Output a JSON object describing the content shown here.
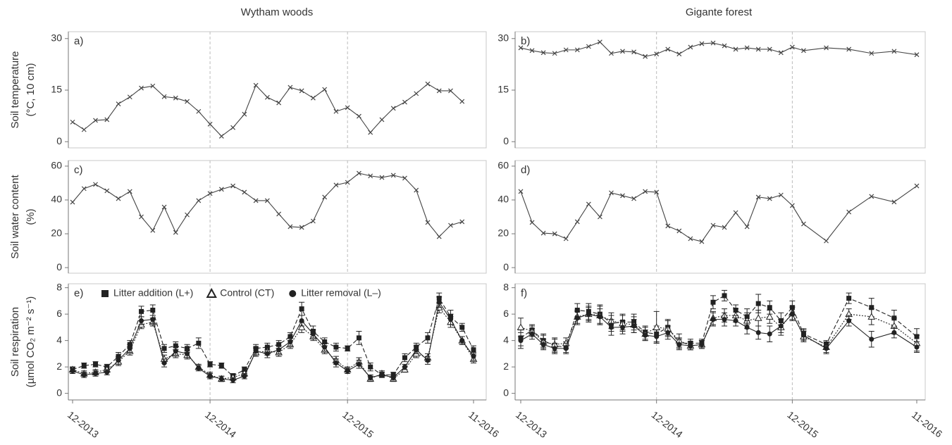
{
  "chart_data": [
    {
      "type": "line",
      "title": "Wytham woods",
      "label": "a)",
      "ylabel": [
        "Soil temperature",
        "(°C, 10 cm)"
      ],
      "xlim": [
        "2013-12",
        "2016-11"
      ],
      "ylim": [
        -1.8,
        32
      ],
      "yticks": [
        0,
        15,
        30
      ],
      "vlines": [
        "2014-12",
        "2015-12"
      ],
      "x": [
        "2013-12",
        "2014-01",
        "2014-02",
        "2014-03",
        "2014-04",
        "2014-05",
        "2014-06",
        "2014-07",
        "2014-08",
        "2014-09",
        "2014-10",
        "2014-11",
        "2014-12",
        "2015-01",
        "2015-02",
        "2015-03",
        "2015-04",
        "2015-05",
        "2015-06",
        "2015-07",
        "2015-08",
        "2015-09",
        "2015-10",
        "2015-11",
        "2015-12",
        "2016-01",
        "2016-02",
        "2016-03",
        "2016-04",
        "2016-05",
        "2016-06",
        "2016-07",
        "2016-08",
        "2016-09",
        "2016-10"
      ],
      "series": [
        {
          "color": "#444",
          "marker": "x",
          "dash": "solid",
          "values": [
            5.7,
            3.5,
            6.2,
            6.4,
            11,
            13,
            15.6,
            16.2,
            13.1,
            12.7,
            11.7,
            8.8,
            5.1,
            1.6,
            4.1,
            8,
            16.4,
            12.9,
            11.3,
            15.8,
            14.8,
            12.7,
            15.2,
            8.8,
            9.9,
            7.4,
            2.7,
            6.4,
            9.7,
            11.5,
            14,
            16.8,
            14.8,
            14.8,
            11.7
          ]
        }
      ]
    },
    {
      "type": "line",
      "title": "Gigante forest",
      "label": "b)",
      "xlim": [
        "2013-12",
        "2016-11"
      ],
      "ylim": [
        -1.8,
        32
      ],
      "yticks": [
        0,
        15,
        30
      ],
      "vlines": [
        "2014-12",
        "2015-12"
      ],
      "x": [
        "2013-12",
        "2014-01",
        "2014-02",
        "2014-03",
        "2014-04",
        "2014-05",
        "2014-06",
        "2014-07",
        "2014-08",
        "2014-09",
        "2014-10",
        "2014-11",
        "2014-12",
        "2015-01",
        "2015-02",
        "2015-03",
        "2015-04",
        "2015-05",
        "2015-06",
        "2015-07",
        "2015-08",
        "2015-09",
        "2015-10",
        "2015-11",
        "2015-12",
        "2016-01",
        "2016-03",
        "2016-05",
        "2016-07",
        "2016-09",
        "2016-11"
      ],
      "series": [
        {
          "color": "#444",
          "marker": "x",
          "dash": "solid",
          "values": [
            27.3,
            26.5,
            25.9,
            25.7,
            26.7,
            26.7,
            27.7,
            29,
            25.7,
            26.3,
            26.1,
            24.8,
            25.5,
            26.9,
            25.5,
            27.5,
            28.5,
            28.7,
            27.9,
            26.9,
            27.3,
            26.9,
            26.9,
            25.9,
            27.5,
            26.5,
            27.3,
            26.9,
            25.7,
            26.3,
            25.3
          ]
        }
      ]
    },
    {
      "type": "line",
      "label": "c)",
      "ylabel": [
        "Soil water content",
        "(%)"
      ],
      "xlim": [
        "2013-12",
        "2016-11"
      ],
      "ylim": [
        -3.3,
        63.3
      ],
      "yticks": [
        0,
        20,
        40,
        60
      ],
      "vlines": [
        "2014-12",
        "2015-12"
      ],
      "x": [
        "2013-12",
        "2014-01",
        "2014-02",
        "2014-03",
        "2014-04",
        "2014-05",
        "2014-06",
        "2014-07",
        "2014-08",
        "2014-09",
        "2014-10",
        "2014-11",
        "2014-12",
        "2015-01",
        "2015-02",
        "2015-03",
        "2015-04",
        "2015-05",
        "2015-06",
        "2015-07",
        "2015-08",
        "2015-09",
        "2015-10",
        "2015-11",
        "2015-12",
        "2016-01",
        "2016-02",
        "2016-03",
        "2016-04",
        "2016-05",
        "2016-06",
        "2016-07",
        "2016-08",
        "2016-09",
        "2016-10"
      ],
      "series": [
        {
          "color": "#444",
          "marker": "x",
          "dash": "solid",
          "values": [
            38.7,
            46.7,
            49.2,
            45.4,
            40.8,
            45,
            30,
            22,
            35.8,
            20.8,
            31.2,
            39.6,
            43.8,
            46.3,
            48.3,
            44.6,
            39.6,
            39.6,
            31.7,
            24.2,
            23.8,
            27.5,
            41.7,
            48.8,
            50.4,
            55.8,
            54.2,
            53.3,
            54.6,
            52.9,
            45.8,
            26.7,
            18.3,
            25,
            27.1
          ]
        }
      ]
    },
    {
      "type": "line",
      "label": "d)",
      "xlim": [
        "2013-12",
        "2016-11"
      ],
      "ylim": [
        -3.3,
        63.3
      ],
      "yticks": [
        0,
        20,
        40,
        60
      ],
      "vlines": [
        "2014-12",
        "2015-12"
      ],
      "x": [
        "2013-12",
        "2014-01",
        "2014-02",
        "2014-03",
        "2014-04",
        "2014-05",
        "2014-06",
        "2014-07",
        "2014-08",
        "2014-09",
        "2014-10",
        "2014-11",
        "2014-12",
        "2015-01",
        "2015-02",
        "2015-03",
        "2015-04",
        "2015-05",
        "2015-06",
        "2015-07",
        "2015-08",
        "2015-09",
        "2015-10",
        "2015-11",
        "2015-12",
        "2016-01",
        "2016-03",
        "2016-05",
        "2016-07",
        "2016-09",
        "2016-11"
      ],
      "series": [
        {
          "color": "#444",
          "marker": "x",
          "dash": "solid",
          "values": [
            45,
            26.7,
            20.4,
            20,
            17.1,
            27.1,
            37.5,
            30,
            44.2,
            42.5,
            40.8,
            45,
            44.6,
            24.6,
            21.7,
            17.1,
            15.4,
            25,
            23.8,
            32.5,
            24.2,
            41.7,
            40.8,
            42.9,
            36.7,
            25.8,
            15.8,
            32.9,
            42.1,
            38.8,
            48.3
          ]
        }
      ]
    },
    {
      "type": "line",
      "label": "e)",
      "ylabel": [
        "Soil respiration",
        "(µmol CO₂ m⁻² s⁻¹)"
      ],
      "legend": "top",
      "xlim": [
        "2013-12",
        "2016-11"
      ],
      "ylim": [
        -0.5,
        8.3
      ],
      "yticks": [
        0,
        2,
        4,
        6,
        8
      ],
      "vlines": [
        "2014-12",
        "2015-12"
      ],
      "xticks": [
        {
          "value": "2013-12",
          "label": "12-2013"
        },
        {
          "value": "2014-12",
          "label": "12-2014"
        },
        {
          "value": "2015-12",
          "label": "12-2015"
        },
        {
          "value": "2016-11",
          "label": "11-2016"
        }
      ],
      "x": [
        "2013-12",
        "2014-01",
        "2014-02",
        "2014-03",
        "2014-04",
        "2014-05",
        "2014-06",
        "2014-07",
        "2014-08",
        "2014-09",
        "2014-10",
        "2014-11",
        "2014-12",
        "2015-01",
        "2015-02",
        "2015-03",
        "2015-04",
        "2015-05",
        "2015-06",
        "2015-07",
        "2015-08",
        "2015-09",
        "2015-10",
        "2015-11",
        "2015-12",
        "2016-01",
        "2016-02",
        "2016-03",
        "2016-04",
        "2016-05",
        "2016-06",
        "2016-07",
        "2016-08",
        "2016-09",
        "2016-10",
        "2016-11"
      ],
      "series": [
        {
          "name": "Litter addition (L+)",
          "color": "#222",
          "marker": "square",
          "dash": "dashed",
          "values": [
            1.8,
            2.1,
            2.2,
            2.0,
            2.8,
            3.7,
            6.2,
            6.3,
            3.4,
            3.6,
            3.4,
            3.8,
            2.2,
            2.1,
            1.3,
            1.8,
            3.4,
            3.5,
            3.7,
            4.3,
            6.4,
            4.7,
            3.9,
            3.5,
            3.4,
            4.2,
            2.0,
            1.4,
            1.4,
            2.7,
            3.5,
            4.2,
            7.2,
            5.8,
            5.0,
            3.3
          ],
          "errors": [
            0.2,
            0.2,
            0.2,
            0.2,
            0.3,
            0.3,
            0.4,
            0.4,
            0.3,
            0.3,
            0.3,
            0.4,
            0.2,
            0.2,
            0.2,
            0.2,
            0.3,
            0.3,
            0.3,
            0.3,
            0.5,
            0.4,
            0.3,
            0.3,
            0.2,
            0.5,
            0.3,
            0.2,
            0.2,
            0.3,
            0.3,
            0.4,
            0.4,
            0.5,
            0.3,
            0.3
          ]
        },
        {
          "name": "Control (CT)",
          "color": "#222",
          "marker": "triangle",
          "dash": "dotted",
          "values": [
            1.8,
            1.5,
            1.6,
            1.8,
            2.4,
            3.2,
            5.2,
            5.4,
            2.6,
            3.0,
            2.9,
            2.0,
            1.4,
            1.1,
            1.2,
            1.5,
            3.1,
            3.2,
            3.1,
            3.7,
            5.0,
            4.3,
            3.3,
            2.5,
            1.8,
            2.4,
            1.1,
            1.5,
            1.1,
            1.8,
            3.0,
            2.7,
            6.5,
            5.4,
            4.0,
            2.6
          ],
          "errors": [
            0.2,
            0.2,
            0.2,
            0.2,
            0.3,
            0.3,
            0.3,
            0.3,
            0.3,
            0.3,
            0.3,
            0.2,
            0.2,
            0.2,
            0.2,
            0.2,
            0.3,
            0.3,
            0.3,
            0.3,
            0.4,
            0.3,
            0.3,
            0.3,
            0.2,
            0.3,
            0.2,
            0.2,
            0.2,
            0.2,
            0.3,
            0.3,
            0.4,
            0.4,
            0.3,
            0.3
          ]
        },
        {
          "name": "Litter removal (L–)",
          "color": "#222",
          "marker": "circle",
          "dash": "solid",
          "values": [
            1.7,
            1.4,
            1.5,
            1.6,
            2.5,
            3.4,
            5.5,
            5.6,
            2.3,
            3.2,
            3.0,
            1.9,
            1.3,
            1.1,
            1.0,
            1.3,
            3.2,
            3.0,
            3.3,
            3.9,
            5.5,
            4.5,
            3.5,
            2.3,
            1.7,
            2.2,
            1.2,
            1.4,
            1.2,
            2.0,
            3.3,
            2.5,
            6.9,
            5.6,
            4.0,
            2.8
          ],
          "errors": [
            0.2,
            0.2,
            0.2,
            0.2,
            0.3,
            0.3,
            0.3,
            0.3,
            0.3,
            0.3,
            0.3,
            0.2,
            0.2,
            0.2,
            0.2,
            0.2,
            0.3,
            0.3,
            0.3,
            0.3,
            0.4,
            0.3,
            0.3,
            0.3,
            0.2,
            0.3,
            0.2,
            0.2,
            0.2,
            0.2,
            0.3,
            0.3,
            0.4,
            0.4,
            0.3,
            0.3
          ]
        }
      ]
    },
    {
      "type": "line",
      "label": "f)",
      "xlim": [
        "2013-12",
        "2016-11"
      ],
      "ylim": [
        -0.5,
        8.3
      ],
      "yticks": [
        0,
        2,
        4,
        6,
        8
      ],
      "vlines": [
        "2014-12",
        "2015-12"
      ],
      "xticks": [
        {
          "value": "2013-12",
          "label": "12-2013"
        },
        {
          "value": "2014-12",
          "label": "12-2014"
        },
        {
          "value": "2015-12",
          "label": "12-2015"
        },
        {
          "value": "2016-11",
          "label": "11-2016"
        }
      ],
      "x": [
        "2013-12",
        "2014-01",
        "2014-02",
        "2014-03",
        "2014-04",
        "2014-05",
        "2014-06",
        "2014-07",
        "2014-08",
        "2014-09",
        "2014-10",
        "2014-11",
        "2014-12",
        "2015-01",
        "2015-02",
        "2015-03",
        "2015-04",
        "2015-05",
        "2015-06",
        "2015-07",
        "2015-08",
        "2015-09",
        "2015-10",
        "2015-11",
        "2015-12",
        "2016-01",
        "2016-03",
        "2016-05",
        "2016-07",
        "2016-09",
        "2016-11"
      ],
      "series": [
        {
          "color": "#222",
          "marker": "square",
          "dash": "dashed",
          "values": [
            4.2,
            4.8,
            4.0,
            3.6,
            3.5,
            6.3,
            6.2,
            6.0,
            5.3,
            5.4,
            5.4,
            4.6,
            4.5,
            5.0,
            3.8,
            3.8,
            3.8,
            6.9,
            7.4,
            6.3,
            5.8,
            6.8,
            6.5,
            5.5,
            6.5,
            4.5,
            3.7,
            7.2,
            6.5,
            5.7,
            4.3
          ],
          "errors": [
            0.6,
            0.4,
            0.5,
            0.5,
            0.4,
            0.5,
            0.6,
            0.7,
            0.6,
            0.6,
            0.6,
            0.5,
            0.6,
            0.6,
            0.4,
            0.3,
            0.3,
            0.5,
            0.4,
            0.4,
            0.6,
            0.7,
            0.5,
            0.6,
            0.5,
            0.4,
            0.3,
            0.4,
            0.7,
            0.6,
            0.6
          ]
        },
        {
          "color": "#222",
          "marker": "triangle",
          "dash": "dotted",
          "values": [
            5.0,
            4.7,
            3.9,
            3.7,
            3.8,
            5.8,
            6.0,
            5.9,
            5.5,
            5.3,
            5.2,
            4.5,
            5.0,
            4.9,
            4.0,
            3.6,
            3.7,
            5.7,
            5.9,
            5.9,
            5.5,
            5.7,
            5.8,
            5.0,
            6.1,
            4.3,
            3.5,
            6.0,
            5.8,
            5.1,
            3.8
          ],
          "errors": [
            0.7,
            0.4,
            0.5,
            0.5,
            0.4,
            0.5,
            0.6,
            0.7,
            0.6,
            0.6,
            0.6,
            0.5,
            1.2,
            0.6,
            0.5,
            0.3,
            0.3,
            0.5,
            0.5,
            0.5,
            0.6,
            0.6,
            0.5,
            0.6,
            0.5,
            0.4,
            0.4,
            0.4,
            0.6,
            0.6,
            0.6
          ]
        },
        {
          "color": "#222",
          "marker": "circle",
          "dash": "solid",
          "values": [
            4.0,
            4.5,
            3.7,
            3.4,
            3.4,
            5.7,
            6.0,
            5.8,
            5.0,
            5.0,
            5.1,
            4.4,
            4.3,
            4.6,
            3.7,
            3.6,
            3.7,
            5.6,
            5.6,
            5.5,
            5.0,
            4.6,
            4.5,
            5.1,
            6.0,
            4.4,
            3.4,
            5.5,
            4.1,
            4.6,
            3.5
          ],
          "errors": [
            0.6,
            0.4,
            0.4,
            0.4,
            0.4,
            0.5,
            0.5,
            0.6,
            0.6,
            0.5,
            0.5,
            0.4,
            0.5,
            0.5,
            0.4,
            0.3,
            0.3,
            0.5,
            0.5,
            0.4,
            0.5,
            0.5,
            0.6,
            0.5,
            0.5,
            0.4,
            0.4,
            0.4,
            0.6,
            0.4,
            0.4
          ]
        }
      ]
    }
  ]
}
